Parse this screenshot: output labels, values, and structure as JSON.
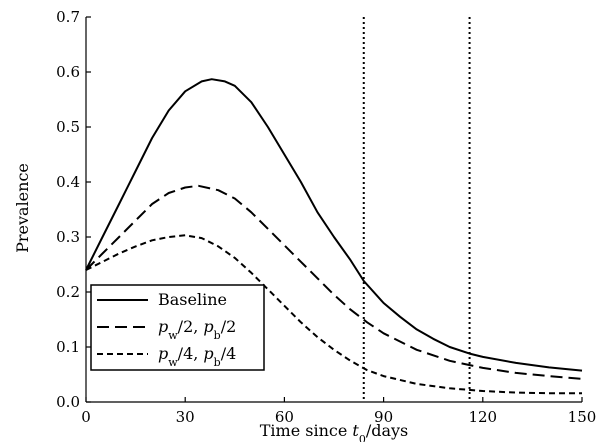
{
  "chart_data": {
    "type": "line",
    "title": "",
    "xlabel": {
      "pre": "Time since ",
      "var": "t",
      "sub": "0",
      "post": "/days"
    },
    "ylabel": "Prevalence",
    "xlim": [
      0,
      150
    ],
    "ylim": [
      0,
      0.7
    ],
    "xticks": [
      0,
      30,
      60,
      90,
      120,
      150
    ],
    "yticks": [
      0.0,
      0.1,
      0.2,
      0.3,
      0.4,
      0.5,
      0.6,
      0.7
    ],
    "ytick_labels": [
      "0.0",
      "0.1",
      "0.2",
      "0.3",
      "0.4",
      "0.5",
      "0.6",
      "0.7"
    ],
    "grid": false,
    "legend_position": "bottom-left",
    "vlines": [
      84,
      116
    ],
    "series": [
      {
        "legend": "Baseline",
        "style": "solid",
        "points": [
          [
            0,
            0.24
          ],
          [
            5,
            0.3
          ],
          [
            10,
            0.36
          ],
          [
            15,
            0.42
          ],
          [
            20,
            0.48
          ],
          [
            25,
            0.53
          ],
          [
            30,
            0.565
          ],
          [
            35,
            0.583
          ],
          [
            38,
            0.587
          ],
          [
            42,
            0.583
          ],
          [
            45,
            0.575
          ],
          [
            50,
            0.545
          ],
          [
            55,
            0.5
          ],
          [
            60,
            0.45
          ],
          [
            65,
            0.4
          ],
          [
            70,
            0.345
          ],
          [
            75,
            0.3
          ],
          [
            80,
            0.258
          ],
          [
            84,
            0.22
          ],
          [
            90,
            0.18
          ],
          [
            95,
            0.155
          ],
          [
            100,
            0.132
          ],
          [
            105,
            0.115
          ],
          [
            110,
            0.1
          ],
          [
            116,
            0.088
          ],
          [
            120,
            0.082
          ],
          [
            130,
            0.071
          ],
          [
            140,
            0.063
          ],
          [
            150,
            0.057
          ]
        ]
      },
      {
        "legend": {
          "pre": "",
          "v1": "p",
          "s1": "w",
          "mid": "/2, ",
          "v2": "p",
          "s2": "b",
          "post": "/2"
        },
        "style": "long-dash",
        "points": [
          [
            0,
            0.24
          ],
          [
            5,
            0.27
          ],
          [
            10,
            0.3
          ],
          [
            15,
            0.33
          ],
          [
            20,
            0.36
          ],
          [
            25,
            0.38
          ],
          [
            30,
            0.39
          ],
          [
            34,
            0.393
          ],
          [
            40,
            0.385
          ],
          [
            45,
            0.37
          ],
          [
            50,
            0.345
          ],
          [
            55,
            0.315
          ],
          [
            60,
            0.285
          ],
          [
            65,
            0.255
          ],
          [
            70,
            0.225
          ],
          [
            75,
            0.195
          ],
          [
            80,
            0.168
          ],
          [
            85,
            0.145
          ],
          [
            90,
            0.125
          ],
          [
            100,
            0.095
          ],
          [
            110,
            0.075
          ],
          [
            120,
            0.062
          ],
          [
            130,
            0.053
          ],
          [
            140,
            0.047
          ],
          [
            150,
            0.042
          ]
        ]
      },
      {
        "legend": {
          "pre": "",
          "v1": "p",
          "s1": "w",
          "mid": "/4, ",
          "v2": "p",
          "s2": "b",
          "post": "/4"
        },
        "style": "short-dash",
        "points": [
          [
            0,
            0.24
          ],
          [
            5,
            0.255
          ],
          [
            10,
            0.27
          ],
          [
            15,
            0.283
          ],
          [
            20,
            0.294
          ],
          [
            25,
            0.3
          ],
          [
            30,
            0.303
          ],
          [
            35,
            0.298
          ],
          [
            40,
            0.283
          ],
          [
            45,
            0.262
          ],
          [
            50,
            0.235
          ],
          [
            55,
            0.205
          ],
          [
            60,
            0.175
          ],
          [
            65,
            0.145
          ],
          [
            70,
            0.118
          ],
          [
            75,
            0.095
          ],
          [
            80,
            0.075
          ],
          [
            85,
            0.058
          ],
          [
            90,
            0.047
          ],
          [
            100,
            0.033
          ],
          [
            110,
            0.025
          ],
          [
            120,
            0.02
          ],
          [
            130,
            0.017
          ],
          [
            140,
            0.016
          ],
          [
            150,
            0.016
          ]
        ]
      }
    ]
  }
}
